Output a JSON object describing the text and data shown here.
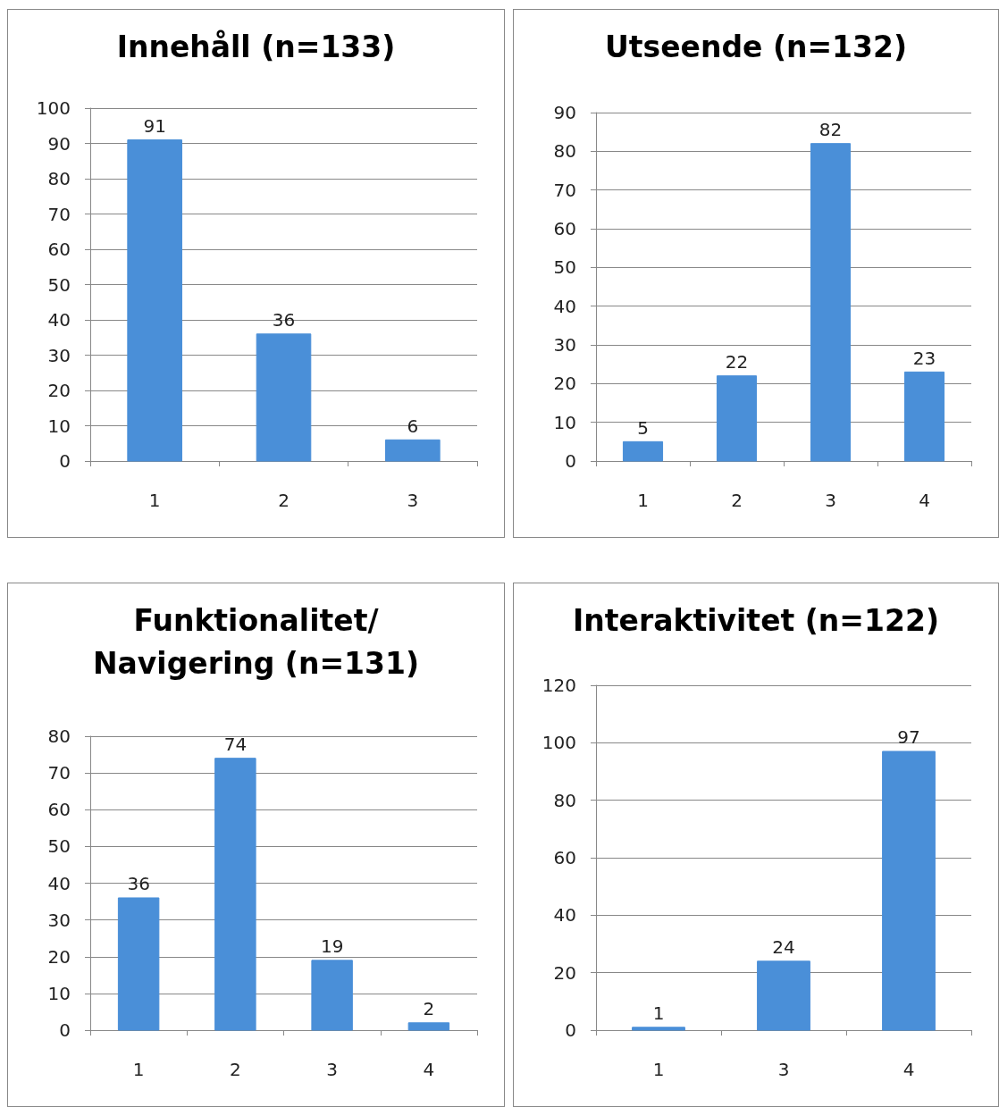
{
  "chart_data": [
    {
      "type": "bar",
      "title": "Innehåll (n=133)",
      "categories": [
        "1",
        "2",
        "3"
      ],
      "values": [
        91,
        36,
        6
      ],
      "color": "#4a8fd8",
      "ylim": [
        0,
        100
      ],
      "yticks": [
        0,
        10,
        20,
        30,
        40,
        50,
        60,
        70,
        80,
        90,
        100
      ],
      "grid": "y",
      "data_labels": true
    },
    {
      "type": "bar",
      "title": "Utseende (n=132)",
      "categories": [
        "1",
        "2",
        "3",
        "4"
      ],
      "values": [
        5,
        22,
        82,
        23
      ],
      "color": "#4a8fd8",
      "ylim": [
        0,
        90
      ],
      "yticks": [
        0,
        10,
        20,
        30,
        40,
        50,
        60,
        70,
        80,
        90
      ],
      "grid": "y",
      "data_labels": true
    },
    {
      "type": "bar",
      "title": "Funktionalitet/\nNavigering (n=131)",
      "categories": [
        "1",
        "2",
        "3",
        "4"
      ],
      "values": [
        36,
        74,
        19,
        2
      ],
      "color": "#4a8fd8",
      "ylim": [
        0,
        80
      ],
      "yticks": [
        0,
        10,
        20,
        30,
        40,
        50,
        60,
        70,
        80
      ],
      "grid": "y",
      "data_labels": true
    },
    {
      "type": "bar",
      "title": "Interaktivitet (n=122)",
      "categories": [
        "1",
        "3",
        "4"
      ],
      "values": [
        1,
        24,
        97
      ],
      "color": "#4a8fd8",
      "ylim": [
        0,
        120
      ],
      "yticks": [
        0,
        20,
        40,
        60,
        80,
        100,
        120
      ],
      "grid": "y",
      "data_labels": true
    }
  ]
}
